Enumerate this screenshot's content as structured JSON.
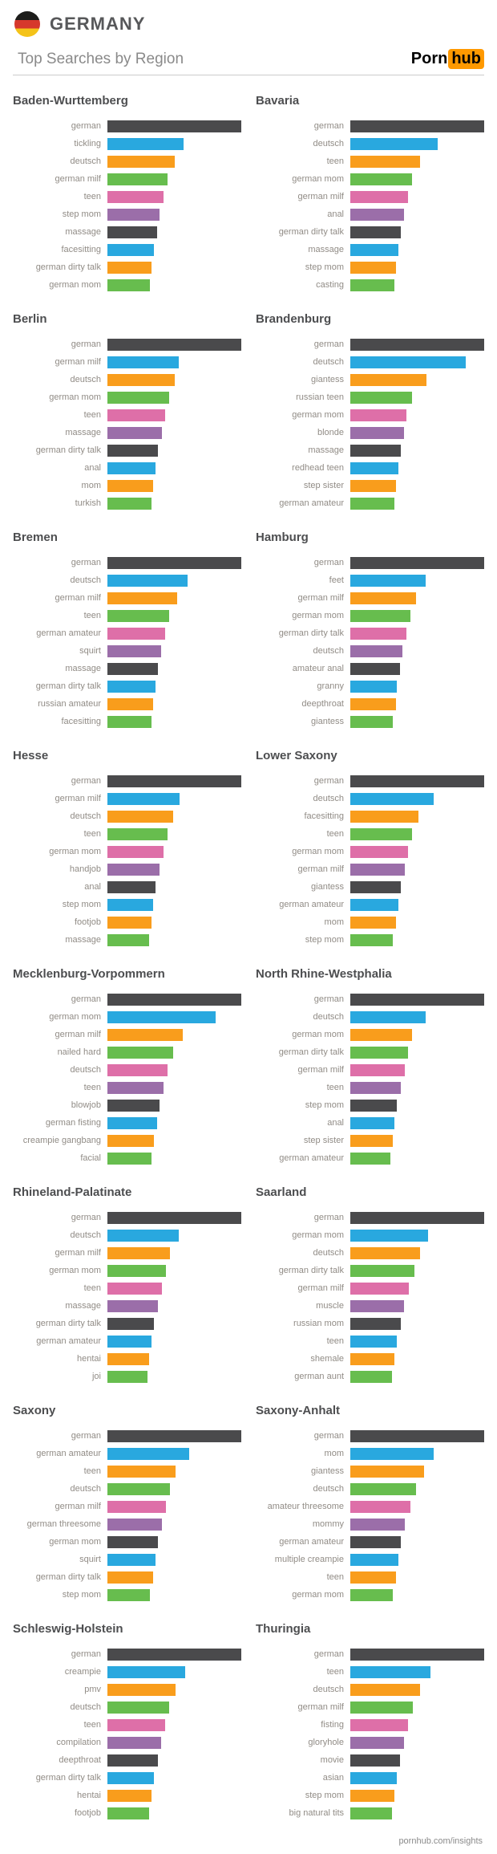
{
  "header": {
    "country": "GERMANY",
    "subtitle": "Top Searches by Region",
    "logo_part1": "Porn",
    "logo_part2": "hub"
  },
  "footer": {
    "text": "pornhub.com/insights"
  },
  "colors": {
    "palette": [
      "#4a4a4c",
      "#29a8df",
      "#f99d1c",
      "#67bd4e",
      "#de6fa8",
      "#9b6ea9"
    ],
    "title_color": "#4d4e50",
    "label_color": "#918c86",
    "logo_orange": "#ff9900",
    "flag": [
      "#1d1d1b",
      "#d6382c",
      "#f4c319"
    ]
  },
  "chart_data": [
    {
      "type": "bar",
      "orientation": "horizontal",
      "title": "Baden-Wurttemberg",
      "categories": [
        "german",
        "tickling",
        "deutsch",
        "german milf",
        "teen",
        "step mom",
        "massage",
        "facesitting",
        "german dirty talk",
        "german mom"
      ],
      "values": [
        100,
        57,
        50,
        45,
        42,
        39,
        37,
        35,
        33,
        32
      ],
      "xlim": [
        0,
        100
      ]
    },
    {
      "type": "bar",
      "orientation": "horizontal",
      "title": "Bavaria",
      "categories": [
        "german",
        "deutsch",
        "teen",
        "german mom",
        "german milf",
        "anal",
        "german dirty talk",
        "massage",
        "step mom",
        "casting"
      ],
      "values": [
        100,
        65,
        52,
        46,
        43,
        40,
        38,
        36,
        34,
        33
      ],
      "xlim": [
        0,
        100
      ]
    },
    {
      "type": "bar",
      "orientation": "horizontal",
      "title": "Berlin",
      "categories": [
        "german",
        "german milf",
        "deutsch",
        "german mom",
        "teen",
        "massage",
        "german dirty talk",
        "anal",
        "mom",
        "turkish"
      ],
      "values": [
        100,
        53,
        50,
        46,
        43,
        41,
        38,
        36,
        34,
        33
      ],
      "xlim": [
        0,
        100
      ]
    },
    {
      "type": "bar",
      "orientation": "horizontal",
      "title": "Brandenburg",
      "categories": [
        "german",
        "deutsch",
        "giantess",
        "russian teen",
        "german mom",
        "blonde",
        "massage",
        "redhead teen",
        "step sister",
        "german amateur"
      ],
      "values": [
        100,
        86,
        57,
        46,
        42,
        40,
        38,
        36,
        34,
        33
      ],
      "xlim": [
        0,
        100
      ]
    },
    {
      "type": "bar",
      "orientation": "horizontal",
      "title": "Bremen",
      "categories": [
        "german",
        "deutsch",
        "german milf",
        "teen",
        "german amateur",
        "squirt",
        "massage",
        "german dirty talk",
        "russian amateur",
        "facesitting"
      ],
      "values": [
        100,
        60,
        52,
        46,
        43,
        40,
        38,
        36,
        34,
        33
      ],
      "xlim": [
        0,
        100
      ]
    },
    {
      "type": "bar",
      "orientation": "horizontal",
      "title": "Hamburg",
      "categories": [
        "german",
        "feet",
        "german milf",
        "german mom",
        "german dirty talk",
        "deutsch",
        "amateur anal",
        "granny",
        "deepthroat",
        "giantess"
      ],
      "values": [
        100,
        56,
        49,
        45,
        42,
        39,
        37,
        35,
        34,
        32
      ],
      "xlim": [
        0,
        100
      ]
    },
    {
      "type": "bar",
      "orientation": "horizontal",
      "title": "Hesse",
      "categories": [
        "german",
        "german milf",
        "deutsch",
        "teen",
        "german mom",
        "handjob",
        "anal",
        "step mom",
        "footjob",
        "massage"
      ],
      "values": [
        100,
        54,
        49,
        45,
        42,
        39,
        36,
        34,
        33,
        31
      ],
      "xlim": [
        0,
        100
      ]
    },
    {
      "type": "bar",
      "orientation": "horizontal",
      "title": "Lower Saxony",
      "categories": [
        "german",
        "deutsch",
        "facesitting",
        "teen",
        "german mom",
        "german milf",
        "giantess",
        "german amateur",
        "mom",
        "step mom"
      ],
      "values": [
        100,
        62,
        51,
        46,
        43,
        41,
        38,
        36,
        34,
        32
      ],
      "xlim": [
        0,
        100
      ]
    },
    {
      "type": "bar",
      "orientation": "horizontal",
      "title": "Mecklenburg-Vorpommern",
      "categories": [
        "german",
        "german mom",
        "german milf",
        "nailed hard",
        "deutsch",
        "teen",
        "blowjob",
        "german fisting",
        "creampie gangbang",
        "facial"
      ],
      "values": [
        100,
        81,
        56,
        49,
        45,
        42,
        39,
        37,
        35,
        33
      ],
      "xlim": [
        0,
        100
      ]
    },
    {
      "type": "bar",
      "orientation": "horizontal",
      "title": "North Rhine-Westphalia",
      "categories": [
        "german",
        "deutsch",
        "german mom",
        "german dirty talk",
        "german milf",
        "teen",
        "step mom",
        "anal",
        "step sister",
        "german amateur"
      ],
      "values": [
        100,
        56,
        46,
        43,
        41,
        38,
        35,
        33,
        32,
        30
      ],
      "xlim": [
        0,
        100
      ]
    },
    {
      "type": "bar",
      "orientation": "horizontal",
      "title": "Rhineland-Palatinate",
      "categories": [
        "german",
        "deutsch",
        "german milf",
        "german mom",
        "teen",
        "massage",
        "german dirty talk",
        "german amateur",
        "hentai",
        "joi"
      ],
      "values": [
        100,
        53,
        47,
        44,
        41,
        38,
        35,
        33,
        31,
        30
      ],
      "xlim": [
        0,
        100
      ]
    },
    {
      "type": "bar",
      "orientation": "horizontal",
      "title": "Saarland",
      "categories": [
        "german",
        "german mom",
        "deutsch",
        "german dirty talk",
        "german milf",
        "muscle",
        "russian mom",
        "teen",
        "shemale",
        "german aunt"
      ],
      "values": [
        100,
        58,
        52,
        48,
        44,
        40,
        38,
        35,
        33,
        31
      ],
      "xlim": [
        0,
        100
      ]
    },
    {
      "type": "bar",
      "orientation": "horizontal",
      "title": "Saxony",
      "categories": [
        "german",
        "german amateur",
        "teen",
        "deutsch",
        "german milf",
        "german threesome",
        "german mom",
        "squirt",
        "german dirty talk",
        "step mom"
      ],
      "values": [
        100,
        61,
        51,
        47,
        44,
        41,
        38,
        36,
        34,
        32
      ],
      "xlim": [
        0,
        100
      ]
    },
    {
      "type": "bar",
      "orientation": "horizontal",
      "title": "Saxony-Anhalt",
      "categories": [
        "german",
        "mom",
        "giantess",
        "deutsch",
        "amateur threesome",
        "mommy",
        "german amateur",
        "multiple creampie",
        "teen",
        "german mom"
      ],
      "values": [
        100,
        62,
        55,
        49,
        45,
        41,
        38,
        36,
        34,
        32
      ],
      "xlim": [
        0,
        100
      ]
    },
    {
      "type": "bar",
      "orientation": "horizontal",
      "title": "Schleswig-Holstein",
      "categories": [
        "german",
        "creampie",
        "pmv",
        "deutsch",
        "teen",
        "compilation",
        "deepthroat",
        "german dirty talk",
        "hentai",
        "footjob"
      ],
      "values": [
        100,
        58,
        51,
        46,
        43,
        40,
        38,
        35,
        33,
        31
      ],
      "xlim": [
        0,
        100
      ]
    },
    {
      "type": "bar",
      "orientation": "horizontal",
      "title": "Thuringia",
      "categories": [
        "german",
        "teen",
        "deutsch",
        "german milf",
        "fisting",
        "gloryhole",
        "movie",
        "asian",
        "step mom",
        "big natural tits"
      ],
      "values": [
        100,
        60,
        52,
        47,
        43,
        40,
        37,
        35,
        33,
        31
      ],
      "xlim": [
        0,
        100
      ]
    }
  ]
}
